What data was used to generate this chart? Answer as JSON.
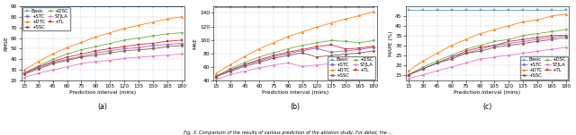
{
  "x": [
    15,
    30,
    45,
    60,
    75,
    90,
    105,
    120,
    135,
    150,
    165,
    180
  ],
  "series_styles": {
    "Basic": {
      "color": "#5B9BD5",
      "marker": "s",
      "linestyle": "-"
    },
    "+DTC": {
      "color": "#FF7F0E",
      "marker": "^",
      "linestyle": "-"
    },
    "+DSC": {
      "color": "#70AD47",
      "marker": "v",
      "linestyle": "-"
    },
    "+TL": {
      "color": "#D62728",
      "marker": "s",
      "linestyle": "-"
    },
    "+STC": {
      "color": "#9467BD",
      "marker": "D",
      "linestyle": "-"
    },
    "+SSC": {
      "color": "#8C564B",
      "marker": "o",
      "linestyle": "-"
    },
    "STJLA": {
      "color": "#E377C2",
      "marker": "p",
      "linestyle": "-"
    }
  },
  "subplot_a": {
    "ylabel": "RMSE",
    "ylim": [
      20,
      90
    ],
    "yticks": [
      20,
      30,
      40,
      50,
      60,
      70,
      80,
      90
    ],
    "legend_loc": "upper left",
    "data": {
      "Basic": [
        90,
        90,
        90,
        90,
        90,
        90,
        90,
        90,
        90,
        90,
        90,
        90
      ],
      "+DTC": [
        30,
        38,
        45,
        51,
        56,
        61,
        65,
        69,
        72,
        75,
        78,
        80
      ],
      "+DSC": [
        27,
        34,
        40,
        45,
        49,
        52,
        55,
        58,
        60,
        62,
        64,
        65
      ],
      "+TL": [
        27,
        33,
        38,
        42,
        45,
        48,
        50,
        52,
        54,
        55,
        57,
        58
      ],
      "+STC": [
        27,
        32,
        37,
        40,
        43,
        46,
        48,
        50,
        51,
        53,
        54,
        55
      ],
      "+SSC": [
        26,
        31,
        36,
        39,
        42,
        44,
        46,
        48,
        49,
        50,
        52,
        53
      ],
      "STJLA": [
        23,
        27,
        30,
        33,
        36,
        38,
        39,
        41,
        42,
        43,
        44,
        45
      ]
    }
  },
  "subplot_b": {
    "ylabel": "MAE",
    "ylim": [
      40,
      150
    ],
    "yticks": [
      40,
      60,
      80,
      100,
      120,
      140
    ],
    "legend_loc": "lower right",
    "data": {
      "Basic": [
        148,
        148,
        148,
        148,
        148,
        148,
        148,
        148,
        148,
        148,
        148,
        148
      ],
      "+DTC": [
        51,
        64,
        76,
        87,
        96,
        105,
        112,
        119,
        125,
        131,
        136,
        142
      ],
      "+DSC": [
        47,
        58,
        67,
        75,
        81,
        87,
        92,
        96,
        99,
        98,
        96,
        99
      ],
      "+TL": [
        46,
        56,
        64,
        71,
        77,
        82,
        86,
        90,
        93,
        87,
        88,
        91
      ],
      "+STC": [
        46,
        55,
        63,
        69,
        75,
        80,
        84,
        88,
        82,
        84,
        86,
        89
      ],
      "+SSC": [
        46,
        54,
        61,
        67,
        73,
        77,
        81,
        75,
        77,
        79,
        81,
        84
      ],
      "STJLA": [
        42,
        49,
        54,
        59,
        63,
        66,
        61,
        63,
        65,
        67,
        68,
        70
      ]
    }
  },
  "subplot_c": {
    "ylabel": "MAPE (%)",
    "ylim": [
      12,
      50
    ],
    "yticks": [
      15,
      20,
      25,
      30,
      35,
      40,
      45
    ],
    "legend_loc": "lower right",
    "data": {
      "Basic": [
        48,
        48,
        48,
        48,
        48,
        48,
        48,
        48,
        48,
        48,
        48,
        48
      ],
      "+DTC": [
        17,
        22,
        26,
        30,
        33,
        36,
        38,
        40,
        42,
        43,
        45,
        46
      ],
      "+DSC": [
        15,
        19,
        22,
        25,
        28,
        30,
        32,
        33,
        35,
        36,
        37,
        38
      ],
      "+TL": [
        15,
        18,
        21,
        24,
        27,
        29,
        30,
        32,
        33,
        34,
        35,
        35
      ],
      "+STC": [
        15,
        18,
        21,
        24,
        26,
        28,
        30,
        31,
        32,
        33,
        34,
        35
      ],
      "+SSC": [
        15,
        18,
        21,
        23,
        26,
        27,
        29,
        30,
        31,
        32,
        33,
        34
      ],
      "STJLA": [
        13,
        15,
        17,
        19,
        21,
        23,
        24,
        25,
        26,
        27,
        28,
        29
      ]
    }
  },
  "legend_order": [
    "Basic",
    "+STC",
    "+DTC",
    "+SSC",
    "+DSC",
    "STJLA",
    "+TL"
  ],
  "xlabel": "Prediction interval (mins)",
  "caption": "Fig. 3. Comparison of the results of various prediction of the ablation study. For detail, the ...",
  "marker_size": 1.8,
  "font_size": 4.2
}
